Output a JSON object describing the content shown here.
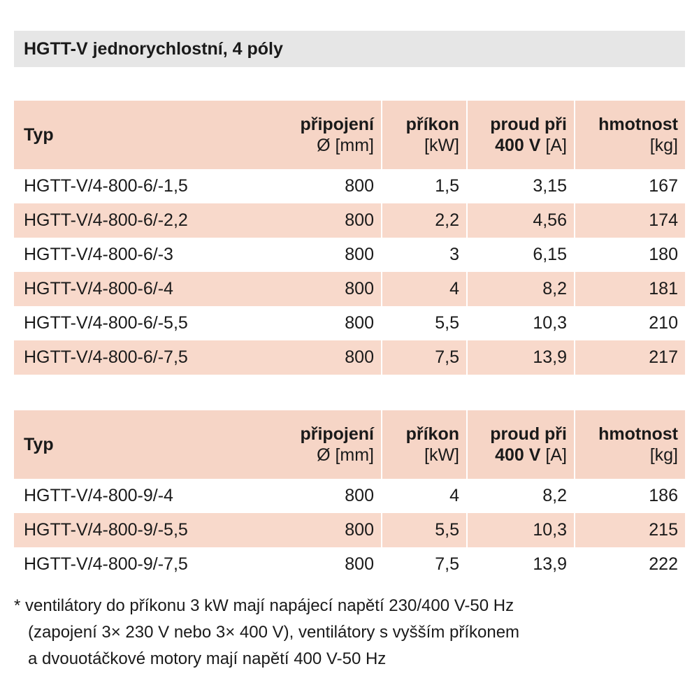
{
  "title": "HGTT-V jednorychlostní, 4 póly",
  "columns": {
    "typ": "Typ",
    "pripojeni": {
      "head": "připojení",
      "unit": "Ø [mm]"
    },
    "prikon": {
      "head": "příkon",
      "unit": "[kW]"
    },
    "proud": {
      "head": "proud při",
      "unit_bold": "400 V",
      "unit": "[A]"
    },
    "hmotnost": {
      "head": "hmotnost",
      "unit": "[kg]"
    }
  },
  "table1": [
    {
      "typ": "HGTT-V/4-800-6/-1,5",
      "pripojeni": "800",
      "prikon": "1,5",
      "proud": "3,15",
      "hmotnost": "167"
    },
    {
      "typ": "HGTT-V/4-800-6/-2,2",
      "pripojeni": "800",
      "prikon": "2,2",
      "proud": "4,56",
      "hmotnost": "174"
    },
    {
      "typ": "HGTT-V/4-800-6/-3",
      "pripojeni": "800",
      "prikon": "3",
      "proud": "6,15",
      "hmotnost": "180"
    },
    {
      "typ": "HGTT-V/4-800-6/-4",
      "pripojeni": "800",
      "prikon": "4",
      "proud": "8,2",
      "hmotnost": "181"
    },
    {
      "typ": "HGTT-V/4-800-6/-5,5",
      "pripojeni": "800",
      "prikon": "5,5",
      "proud": "10,3",
      "hmotnost": "210"
    },
    {
      "typ": "HGTT-V/4-800-6/-7,5",
      "pripojeni": "800",
      "prikon": "7,5",
      "proud": "13,9",
      "hmotnost": "217"
    }
  ],
  "table2": [
    {
      "typ": "HGTT-V/4-800-9/-4",
      "pripojeni": "800",
      "prikon": "4",
      "proud": "8,2",
      "hmotnost": "186"
    },
    {
      "typ": "HGTT-V/4-800-9/-5,5",
      "pripojeni": "800",
      "prikon": "5,5",
      "proud": "10,3",
      "hmotnost": "215"
    },
    {
      "typ": "HGTT-V/4-800-9/-7,5",
      "pripojeni": "800",
      "prikon": "7,5",
      "proud": "13,9",
      "hmotnost": "222"
    }
  ],
  "footnote": {
    "line1": "* ventilátory do příkonu 3 kW mají napájecí napětí 230/400 V-50 Hz",
    "line2": "(zapojení 3× 230 V nebo 3× 400 V), ventilátory s vyšším příkonem",
    "line3": "a dvouotáčkové motory mají napětí 400 V-50 Hz"
  },
  "colors": {
    "title_bg": "#e6e6e6",
    "header_bg": "#f6d5c6",
    "alt_row_bg": "#f8d9cb"
  }
}
